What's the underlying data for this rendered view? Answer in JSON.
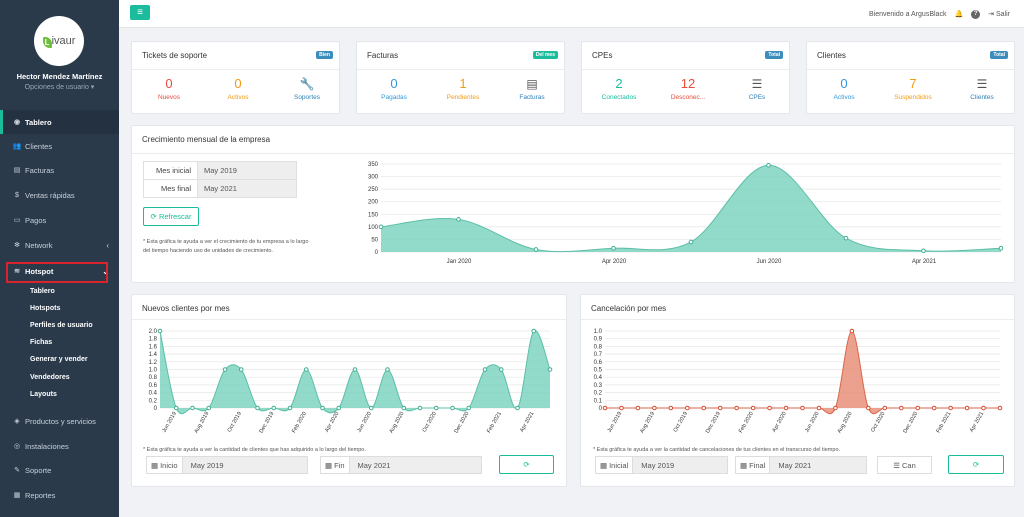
{
  "user": {
    "name": "Hector Mendez Martínez",
    "options": "Opciones de usuario ▾",
    "logo_letter": "L",
    "logo_text": "ivaur"
  },
  "sidebar": {
    "items": [
      {
        "label": "Tablero",
        "icon": "dashboard-icon",
        "glyph": "◉"
      },
      {
        "label": "Clientes",
        "icon": "users-icon",
        "glyph": "👥"
      },
      {
        "label": "Facturas",
        "icon": "file-icon",
        "glyph": "▤"
      },
      {
        "label": "Ventas rápidas",
        "icon": "money-icon",
        "glyph": "$"
      },
      {
        "label": "Pagos",
        "icon": "credit-card-icon",
        "glyph": "▭"
      },
      {
        "label": "Network",
        "icon": "network-icon",
        "glyph": "✻"
      },
      {
        "label": "Hotspot",
        "icon": "wifi-icon",
        "glyph": "≋"
      },
      {
        "label": "Productos y servicios",
        "icon": "tags-icon",
        "glyph": "◈"
      },
      {
        "label": "Instalaciones",
        "icon": "satellite-icon",
        "glyph": "◎"
      },
      {
        "label": "Soporte",
        "icon": "wrench-icon",
        "glyph": "✎"
      },
      {
        "label": "Reportes",
        "icon": "report-icon",
        "glyph": "▦"
      }
    ],
    "hotspot_sub": [
      "Tablero",
      "Hotspots",
      "Perfiles de usuario",
      "Fichas",
      "Generar y vender",
      "Vendedores",
      "Layouts"
    ]
  },
  "topbar": {
    "menu_glyph": "≡",
    "welcome": "Bienvenido a ArgusBlack",
    "logout": "Salir",
    "bell_glyph": "🔔",
    "help_glyph": "?",
    "logout_glyph": "⇥"
  },
  "cards": [
    {
      "title": "Tickets de soporte",
      "badge": "Bien",
      "badge_color": "#3c8dbc",
      "stats": [
        {
          "value": "0",
          "label": "Nuevos",
          "color": "#e74c3c"
        },
        {
          "value": "0",
          "label": "Activos",
          "color": "#f39c12"
        },
        {
          "value": "",
          "label": "Soportes",
          "color": "#2c7fb8",
          "glyph": "🔧"
        }
      ]
    },
    {
      "title": "Facturas",
      "badge": "Del mes",
      "badge_color": "#1abc9c",
      "stats": [
        {
          "value": "0",
          "label": "Pagadas",
          "color": "#3498db"
        },
        {
          "value": "1",
          "label": "Pendientes",
          "color": "#f39c12"
        },
        {
          "value": "",
          "label": "Facturas",
          "color": "#2c7fb8",
          "glyph": "▤"
        }
      ]
    },
    {
      "title": "CPEs",
      "badge": "Total",
      "badge_color": "#3c8dbc",
      "stats": [
        {
          "value": "2",
          "label": "Conectados",
          "color": "#1abc9c"
        },
        {
          "value": "12",
          "label": "Desconec...",
          "color": "#e74c3c"
        },
        {
          "value": "",
          "label": "CPEs",
          "color": "#2c7fb8",
          "glyph": "☰"
        }
      ]
    },
    {
      "title": "Clientes",
      "badge": "Total",
      "badge_color": "#3c8dbc",
      "stats": [
        {
          "value": "0",
          "label": "Activos",
          "color": "#3498db"
        },
        {
          "value": "7",
          "label": "Suspendidos",
          "color": "#f39c12"
        },
        {
          "value": "",
          "label": "Clientes",
          "color": "#2c7fb8",
          "glyph": "☰"
        }
      ]
    }
  ],
  "growth": {
    "title": "Crecimiento mensual de la empresa",
    "start_label": "Mes inicial",
    "start_value": "May 2019",
    "end_label": "Mes final",
    "end_value": "May 2021",
    "refresh": "Refrescar",
    "note": "* Esta gráfica te ayuda a ver el crecimiento de tu empresa a lo largo del tiempo haciendo uso de unidades de crecimiento."
  },
  "nuevos": {
    "title": "Nuevos clientes por mes",
    "note": "* Esta gráfica te ayuda a ver la cantidad de clientes que has adquirido a lo largo del tiempo.",
    "start_label": "Inicio",
    "start_value": "May 2019",
    "end_label": "Fin",
    "end_value": "May 2021"
  },
  "cancel": {
    "title": "Cancelación por mes",
    "note": "* Esta gráfica te ayuda a ver la cantidad de cancelaciones de tus clientes en el transcurso del tiempo.",
    "start_label": "Inicial",
    "start_value": "May 2019",
    "end_label": "Final",
    "end_value": "May 2021",
    "extra_label": "Can"
  },
  "colors": {
    "accent": "#1abc9c",
    "area_green": "#7fd3bf",
    "area_red": "#e8907a",
    "sidebar": "#2a3a4b"
  },
  "chart_data": [
    {
      "type": "area",
      "title": "",
      "x": [
        "May 2019",
        "Sep 2019",
        "Nov 2019",
        "Feb 2020",
        "May 2020",
        "Aug 2020",
        "Oct 2020",
        "Feb 2021",
        "May 2021"
      ],
      "values": [
        100,
        130,
        10,
        15,
        40,
        345,
        55,
        5,
        15
      ],
      "ylim": [
        0,
        350
      ],
      "yticks": [
        "0",
        "50",
        "100",
        "150",
        "200",
        "250",
        "300",
        "350"
      ],
      "xticks": [
        "Jan 2020",
        "Apr 2020",
        "Jun 2020",
        "Apr 2021"
      ],
      "grid": true
    },
    {
      "type": "area",
      "title": "",
      "x": [
        "May 2019",
        "Jun 2019",
        "Jul 2019",
        "Aug 2019",
        "Sep 2019",
        "Oct 2019",
        "Nov 2019",
        "Dec 2019",
        "Jan 2020",
        "Feb 2020",
        "Mar 2020",
        "Apr 2020",
        "May 2020",
        "Jun 2020",
        "Jul 2020",
        "Aug 2020",
        "Sep 2020",
        "Oct 2020",
        "Nov 2020",
        "Dec 2020",
        "Jan 2021",
        "Feb 2021",
        "Mar 2021",
        "Apr 2021",
        "May 2021"
      ],
      "values": [
        2,
        0,
        0,
        0,
        1,
        1,
        0,
        0,
        0,
        1,
        0,
        0,
        1,
        0,
        1,
        0,
        0,
        0,
        0,
        0,
        1,
        1,
        0,
        2,
        1
      ],
      "ylim": [
        0,
        2
      ],
      "yticks": [
        "0",
        "0.2",
        "0.4",
        "0.6",
        "0.8",
        "1.0",
        "1.2",
        "1.4",
        "1.6",
        "1.8",
        "2.0"
      ],
      "xticks": [
        "Jun 2019",
        "Aug 2019",
        "Oct 2019",
        "Dec 2019",
        "Feb 2020",
        "Apr 2020",
        "Jun 2020",
        "Aug 2020",
        "Oct 2020",
        "Dec 2020",
        "Feb 2021",
        "Apr 2021"
      ],
      "grid": true
    },
    {
      "type": "area",
      "title": "",
      "x": [
        "May 2019",
        "Jun 2019",
        "Jul 2019",
        "Aug 2019",
        "Sep 2019",
        "Oct 2019",
        "Nov 2019",
        "Dec 2019",
        "Jan 2020",
        "Feb 2020",
        "Mar 2020",
        "Apr 2020",
        "May 2020",
        "Jun 2020",
        "Jul 2020",
        "Aug 2020",
        "Sep 2020",
        "Oct 2020",
        "Nov 2020",
        "Dec 2020",
        "Jan 2021",
        "Feb 2021",
        "Mar 2021",
        "Apr 2021",
        "May 2021"
      ],
      "values": [
        0,
        0,
        0,
        0,
        0,
        0,
        0,
        0,
        0,
        0,
        0,
        0,
        0,
        0,
        0,
        1,
        0,
        0,
        0,
        0,
        0,
        0,
        0,
        0,
        0
      ],
      "ylim": [
        0,
        1
      ],
      "yticks": [
        "0",
        "0.1",
        "0.2",
        "0.3",
        "0.4",
        "0.5",
        "0.6",
        "0.7",
        "0.8",
        "0.9",
        "1.0"
      ],
      "xticks": [
        "Jun 2019",
        "Aug 2019",
        "Oct 2019",
        "Dec 2019",
        "Feb 2020",
        "Apr 2020",
        "Jun 2020",
        "Aug 2020",
        "Oct 2020",
        "Dec 2020",
        "Feb 2021",
        "Apr 2021"
      ],
      "grid": true
    }
  ]
}
